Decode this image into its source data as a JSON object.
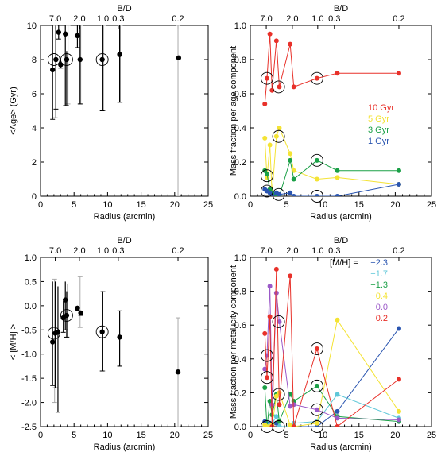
{
  "chart_data": [
    {
      "id": "age",
      "type": "scatter",
      "xlabel": "Radius (arcmin)",
      "ylabel": "<Age> (Gyr)",
      "xlim": [
        0,
        25
      ],
      "ylim": [
        0,
        10
      ],
      "x_ticks": [
        0,
        5,
        10,
        15,
        20,
        25
      ],
      "y_ticks": [
        0,
        2,
        4,
        6,
        8,
        10
      ],
      "top_axis_label": "B/D",
      "top_ticks": [
        {
          "x": 2.2,
          "label": "7.0"
        },
        {
          "x": 5.8,
          "label": "2.0"
        },
        {
          "x": 9.3,
          "label": "1.0"
        },
        {
          "x": 11.6,
          "label": "0.3"
        },
        {
          "x": 20.5,
          "label": "0.2"
        }
      ],
      "black_points": [
        {
          "x": 1.8,
          "y": 7.4,
          "lo": 4.5,
          "hi": 10
        },
        {
          "x": 2.3,
          "y": 8.0,
          "lo": 5.1,
          "hi": 10
        },
        {
          "x": 2.7,
          "y": 9.6,
          "lo": 9.2,
          "hi": 10
        },
        {
          "x": 3.0,
          "y": 7.7,
          "lo": 7.5,
          "hi": 8.0
        },
        {
          "x": 3.7,
          "y": 9.5,
          "lo": 5.3,
          "hi": 10
        },
        {
          "x": 3.9,
          "y": 8.0,
          "lo": 5.3,
          "hi": 8.5
        },
        {
          "x": 5.5,
          "y": 9.4,
          "lo": 8.7,
          "hi": 10
        },
        {
          "x": 5.9,
          "y": 8.0,
          "lo": 5.4,
          "hi": 10
        },
        {
          "x": 9.2,
          "y": 8.0,
          "lo": 5.0,
          "hi": 10
        },
        {
          "x": 11.8,
          "y": 8.3,
          "lo": 5.5,
          "hi": 10
        },
        {
          "x": 20.6,
          "y": 8.1
        }
      ],
      "gray_errorbars": [
        {
          "x": 2.2,
          "lo": 4.6,
          "hi": 10
        },
        {
          "x": 4.1,
          "lo": 5.4,
          "hi": 10
        },
        {
          "x": 6.0,
          "lo": 5.4,
          "hi": 10
        },
        {
          "x": 9.4,
          "lo": 5.0,
          "hi": 10
        },
        {
          "x": 11.9,
          "lo": 5.5,
          "hi": 10
        },
        {
          "x": 20.5,
          "lo": 0.0,
          "hi": 10
        }
      ],
      "circled": [
        [
          2.0,
          8.0
        ],
        [
          3.9,
          8.0
        ],
        [
          9.2,
          8.0
        ]
      ]
    },
    {
      "id": "age-fraction",
      "type": "line",
      "xlabel": "Radius (arcmin)",
      "ylabel": "Mass fraction per age component",
      "xlim": [
        0,
        25
      ],
      "ylim": [
        0,
        1
      ],
      "x_ticks": [
        0,
        5,
        10,
        15,
        20,
        25
      ],
      "y_ticks": [
        0.0,
        0.2,
        0.4,
        0.6,
        0.8,
        1.0
      ],
      "top_axis_label": "B/D",
      "top_ticks": [
        {
          "x": 2.2,
          "label": "7.0"
        },
        {
          "x": 5.8,
          "label": "2.0"
        },
        {
          "x": 9.3,
          "label": "1.0"
        },
        {
          "x": 11.6,
          "label": "0.3"
        },
        {
          "x": 20.5,
          "label": "0.2"
        }
      ],
      "series": [
        {
          "name": "10 Gyr",
          "color": "#e8312a",
          "x": [
            2.0,
            2.3,
            2.7,
            3.0,
            3.6,
            4.0,
            5.5,
            6.0,
            9.2,
            12.0,
            20.5
          ],
          "y": [
            0.54,
            0.69,
            0.95,
            0.62,
            0.91,
            0.64,
            0.89,
            0.64,
            0.69,
            0.72,
            0.72
          ]
        },
        {
          "name": "5 Gyr",
          "color": "#f4e334",
          "x": [
            2.0,
            2.3,
            2.7,
            3.0,
            3.6,
            4.0,
            5.5,
            6.0,
            9.2,
            12.0,
            20.5
          ],
          "y": [
            0.34,
            0.11,
            0.3,
            0.01,
            0.35,
            0.4,
            0.25,
            0.15,
            0.1,
            0.11,
            0.07
          ]
        },
        {
          "name": "3 Gyr",
          "color": "#1aa046",
          "x": [
            2.0,
            2.3,
            2.7,
            3.0,
            3.6,
            4.0,
            5.5,
            6.0,
            9.2,
            12.0,
            20.5
          ],
          "y": [
            0.15,
            0.13,
            0.04,
            0.02,
            0.01,
            0.0,
            0.21,
            0.1,
            0.21,
            0.15,
            0.15
          ]
        },
        {
          "name": "1 Gyr",
          "color": "#2a55b0",
          "x": [
            2.0,
            2.3,
            2.7,
            3.0,
            3.6,
            4.0,
            5.5,
            6.0,
            9.2,
            12.0,
            20.5
          ],
          "y": [
            0.04,
            0.03,
            0.02,
            0.0,
            0.02,
            0.01,
            0.02,
            0.0,
            0.0,
            0.0,
            0.07
          ]
        }
      ],
      "circled": [
        [
          2.3,
          0.69
        ],
        [
          3.9,
          0.64
        ],
        [
          9.2,
          0.69
        ],
        [
          3.9,
          0.35
        ],
        [
          2.3,
          0.12
        ],
        [
          9.2,
          0.21
        ],
        [
          2.3,
          0.03
        ],
        [
          3.9,
          0.01
        ],
        [
          9.2,
          0.0
        ]
      ],
      "legend_position": "middle-right"
    },
    {
      "id": "metallicity",
      "type": "scatter",
      "xlabel": "Radius (arcmin)",
      "ylabel": "< [M/H] >",
      "xlim": [
        0,
        25
      ],
      "ylim": [
        -2.5,
        1.0
      ],
      "x_ticks": [
        0,
        5,
        10,
        15,
        20,
        25
      ],
      "y_ticks": [
        -2.5,
        -2.0,
        -1.5,
        -1.0,
        -0.5,
        0.0,
        0.5,
        1.0
      ],
      "top_axis_label": "B/D",
      "top_ticks": [
        {
          "x": 2.2,
          "label": "7.0"
        },
        {
          "x": 5.8,
          "label": "2.0"
        },
        {
          "x": 9.3,
          "label": "1.0"
        },
        {
          "x": 11.6,
          "label": "0.3"
        },
        {
          "x": 20.5,
          "label": "0.2"
        }
      ],
      "black_points": [
        {
          "x": 1.8,
          "y": -0.75,
          "lo": -1.65,
          "hi": 0.5
        },
        {
          "x": 2.2,
          "y": -0.57,
          "lo": -1.7,
          "hi": 0.5
        },
        {
          "x": 2.6,
          "y": -0.55,
          "lo": -2.2,
          "hi": 0.4
        },
        {
          "x": 3.4,
          "y": -0.25,
          "lo": -0.55,
          "hi": 0.1
        },
        {
          "x": 3.7,
          "y": 0.12,
          "lo": -0.5,
          "hi": 0.5
        },
        {
          "x": 3.9,
          "y": -0.2,
          "lo": -0.65,
          "hi": 0.3
        },
        {
          "x": 5.5,
          "y": -0.05,
          "lo": -0.1,
          "hi": 0.0
        },
        {
          "x": 6.0,
          "y": -0.15,
          "lo": -0.2,
          "hi": -0.1
        },
        {
          "x": 9.2,
          "y": -0.54,
          "lo": -1.35,
          "hi": 0.3
        },
        {
          "x": 11.8,
          "y": -0.65,
          "lo": -1.25,
          "hi": -0.1
        },
        {
          "x": 20.5,
          "y": -1.37
        }
      ],
      "gray_errorbars": [
        {
          "x": 2.1,
          "lo": -2.0,
          "hi": 0.55
        },
        {
          "x": 4.0,
          "lo": -0.65,
          "hi": 0.45
        },
        {
          "x": 5.9,
          "lo": -0.45,
          "hi": 0.6
        },
        {
          "x": 9.3,
          "lo": -1.35,
          "hi": 0.3
        },
        {
          "x": 11.8,
          "lo": -1.25,
          "hi": -0.1
        },
        {
          "x": 20.5,
          "lo": -2.5,
          "hi": -0.25
        }
      ],
      "circled": [
        [
          2.0,
          -0.57
        ],
        [
          3.9,
          -0.2
        ],
        [
          9.2,
          -0.54
        ]
      ]
    },
    {
      "id": "metallicity-fraction",
      "type": "line",
      "xlabel": "Radius (arcmin)",
      "ylabel": "Mass fraction per metallicity component",
      "xlim": [
        0,
        25
      ],
      "ylim": [
        0,
        1
      ],
      "x_ticks": [
        0,
        5,
        10,
        15,
        20,
        25
      ],
      "y_ticks": [
        0.0,
        0.2,
        0.4,
        0.6,
        0.8,
        1.0
      ],
      "top_axis_label": "B/D",
      "top_ticks": [
        {
          "x": 2.2,
          "label": "7.0"
        },
        {
          "x": 5.8,
          "label": "2.0"
        },
        {
          "x": 9.3,
          "label": "1.0"
        },
        {
          "x": 11.6,
          "label": "0.3"
        },
        {
          "x": 20.5,
          "label": "0.2"
        }
      ],
      "legend_title": "[M/H] =",
      "series": [
        {
          "name": "−2.3",
          "color": "#2a55b0",
          "x": [
            2.0,
            2.3,
            2.7,
            3.0,
            3.6,
            4.0,
            5.5,
            6.0,
            9.2,
            12.0,
            20.5
          ],
          "y": [
            0.03,
            0.0,
            0.02,
            0.01,
            0.02,
            0.0,
            0.0,
            0.0,
            0.0,
            0.09,
            0.58
          ]
        },
        {
          "name": "−1.7",
          "color": "#5fc7d8",
          "x": [
            2.0,
            2.3,
            2.7,
            3.0,
            3.6,
            4.0,
            5.5,
            6.0,
            9.2,
            12.0,
            20.5
          ],
          "y": [
            0.0,
            0.0,
            0.01,
            0.02,
            0.06,
            0.0,
            0.0,
            0.02,
            0.03,
            0.19,
            0.05
          ]
        },
        {
          "name": "−1.3",
          "color": "#1aa046",
          "x": [
            2.0,
            2.3,
            2.7,
            3.0,
            3.6,
            4.0,
            5.5,
            6.0,
            9.2,
            12.0,
            20.5
          ],
          "y": [
            0.23,
            0.0,
            0.15,
            0.07,
            0.19,
            0.03,
            0.19,
            0.15,
            0.24,
            0.06,
            0.03
          ]
        },
        {
          "name": "−0.4",
          "color": "#f4e334",
          "x": [
            2.0,
            2.3,
            2.7,
            3.0,
            3.6,
            4.0,
            5.5,
            6.0,
            9.2,
            12.0,
            20.5
          ],
          "y": [
            0.01,
            0.0,
            0.0,
            0.01,
            0.18,
            0.2,
            0.01,
            0.0,
            0.02,
            0.63,
            0.09
          ]
        },
        {
          "name": "0.0",
          "color": "#9b59c8",
          "x": [
            2.0,
            2.3,
            2.7,
            3.0,
            3.6,
            4.0,
            5.5,
            6.0,
            9.2,
            12.0,
            20.5
          ],
          "y": [
            0.34,
            0.42,
            0.83,
            0.13,
            0.79,
            0.62,
            0.12,
            0.13,
            0.1,
            0.05,
            0.04
          ]
        },
        {
          "name": "0.2",
          "color": "#e8312a",
          "x": [
            2.0,
            2.3,
            2.7,
            3.0,
            3.6,
            4.0,
            5.5,
            6.0,
            9.2,
            12.0,
            20.5
          ],
          "y": [
            0.55,
            0.29,
            0.65,
            0.0,
            0.93,
            0.13,
            0.89,
            0.0,
            0.46,
            0.0,
            0.28
          ]
        }
      ],
      "circled": [
        [
          2.3,
          0.29
        ],
        [
          2.3,
          0.42
        ],
        [
          2.3,
          0.0
        ],
        [
          3.9,
          0.62
        ],
        [
          3.9,
          0.19
        ],
        [
          3.9,
          0.0
        ],
        [
          9.2,
          0.46
        ],
        [
          9.2,
          0.24
        ],
        [
          9.2,
          0.1
        ],
        [
          9.2,
          0.0
        ]
      ],
      "legend_position": "top-right"
    }
  ]
}
